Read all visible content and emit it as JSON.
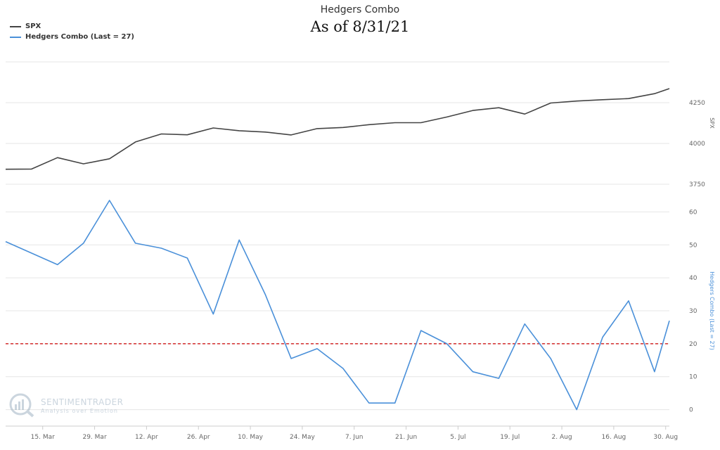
{
  "chart_data": {
    "type": "line",
    "title": "Hedgers Combo",
    "subtitle": "As of 8/31/21",
    "x_tick_labels": [
      "15. Mar",
      "29. Mar",
      "12. Apr",
      "26. Apr",
      "10. May",
      "24. May",
      "7. Jun",
      "21. Jun",
      "5. Jul",
      "19. Jul",
      "2. Aug",
      "16. Aug",
      "30. Aug"
    ],
    "x": [
      "2021-03-05",
      "2021-03-12",
      "2021-03-19",
      "2021-03-26",
      "2021-04-02",
      "2021-04-09",
      "2021-04-16",
      "2021-04-23",
      "2021-04-30",
      "2021-05-07",
      "2021-05-14",
      "2021-05-21",
      "2021-05-28",
      "2021-06-04",
      "2021-06-11",
      "2021-06-18",
      "2021-06-25",
      "2021-07-02",
      "2021-07-09",
      "2021-07-16",
      "2021-07-23",
      "2021-07-30",
      "2021-08-06",
      "2021-08-13",
      "2021-08-20",
      "2021-08-27",
      "2021-08-31"
    ],
    "series": [
      {
        "name": "SPX",
        "color": "#444444",
        "axis": "SPX",
        "values": [
          3842,
          3843,
          3913,
          3875,
          3906,
          4009,
          4058,
          4053,
          4095,
          4078,
          4070,
          4052,
          4091,
          4098,
          4115,
          4127,
          4127,
          4162,
          4202,
          4219,
          4180,
          4248,
          4260,
          4268,
          4275,
          4305,
          4336
        ]
      },
      {
        "name": "Hedgers Combo (Last = 27)",
        "color": "#4a90d9",
        "axis": "Hedgers Combo (Last = 27)",
        "values": [
          51,
          47.5,
          44,
          50.5,
          63.5,
          50.5,
          49,
          46,
          29,
          51.5,
          35,
          15.5,
          18.5,
          12.5,
          2,
          2,
          24,
          20,
          11.5,
          9.5,
          26,
          15.5,
          0,
          22,
          33,
          11.5,
          27
        ]
      }
    ],
    "reference_line": {
      "value": 20,
      "color": "#cc0000",
      "style": "dashed",
      "axis": "Hedgers Combo (Last = 27)"
    },
    "y_axes": [
      {
        "title": "SPX",
        "ticks": [
          "3750",
          "4000",
          "4250"
        ],
        "tick_values": [
          3750,
          4000,
          4250
        ],
        "range": [
          3750,
          4500
        ],
        "title_color": "#666666"
      },
      {
        "title": "Hedgers Combo (Last = 27)",
        "ticks": [
          "0",
          "10",
          "20",
          "30",
          "40",
          "50",
          "60"
        ],
        "tick_values": [
          0,
          10,
          20,
          30,
          40,
          50,
          60
        ],
        "range": [
          -5,
          65
        ],
        "title_color": "#4a90d9"
      }
    ],
    "grid": true,
    "legend_position": "top-left"
  },
  "watermark": {
    "brand": "SENTIMENTRADER",
    "tagline": "Analysis over Emotion"
  }
}
